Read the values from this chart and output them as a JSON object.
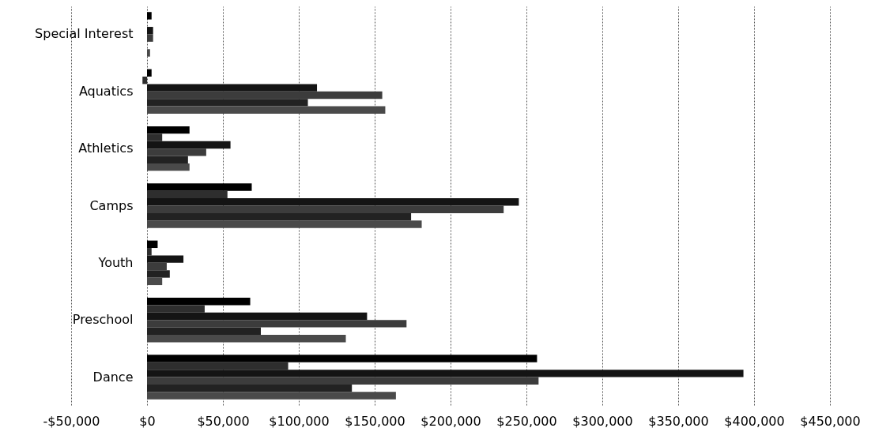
{
  "chart_data": {
    "type": "bar",
    "orientation": "horizontal",
    "categories": [
      "Special Interest",
      "Aquatics",
      "Athletics",
      "Camps",
      "Youth",
      "Preschool",
      "Dance"
    ],
    "series": [
      {
        "color": "#000000",
        "values": [
          3000,
          3000,
          28000,
          69000,
          7000,
          68000,
          257000
        ]
      },
      {
        "color": "#2e2e2e",
        "values": [
          0,
          -3000,
          10000,
          53000,
          3000,
          38000,
          93000
        ]
      },
      {
        "color": "#141414",
        "values": [
          4000,
          112000,
          55000,
          245000,
          24000,
          145000,
          393000
        ]
      },
      {
        "color": "#3c3c3c",
        "values": [
          4000,
          155000,
          39000,
          235000,
          13000,
          171000,
          258000
        ]
      },
      {
        "color": "#222222",
        "values": [
          0,
          106000,
          27000,
          174000,
          15000,
          75000,
          135000
        ]
      },
      {
        "color": "#4a4a4a",
        "values": [
          2000,
          157000,
          28000,
          181000,
          10000,
          131000,
          164000
        ]
      }
    ],
    "xlim": [
      -50000,
      450000
    ],
    "xticks": [
      {
        "value": -50000,
        "label": "-$50,000"
      },
      {
        "value": 0,
        "label": "$0"
      },
      {
        "value": 50000,
        "label": "$50,000"
      },
      {
        "value": 100000,
        "label": "$100,000"
      },
      {
        "value": 150000,
        "label": "$150,000"
      },
      {
        "value": 200000,
        "label": "$200,000"
      },
      {
        "value": 250000,
        "label": "$250,000"
      },
      {
        "value": 300000,
        "label": "$300,000"
      },
      {
        "value": 350000,
        "label": "$350,000"
      },
      {
        "value": 400000,
        "label": "$400,000"
      },
      {
        "value": 450000,
        "label": "$450,000"
      }
    ],
    "grid": "x"
  }
}
